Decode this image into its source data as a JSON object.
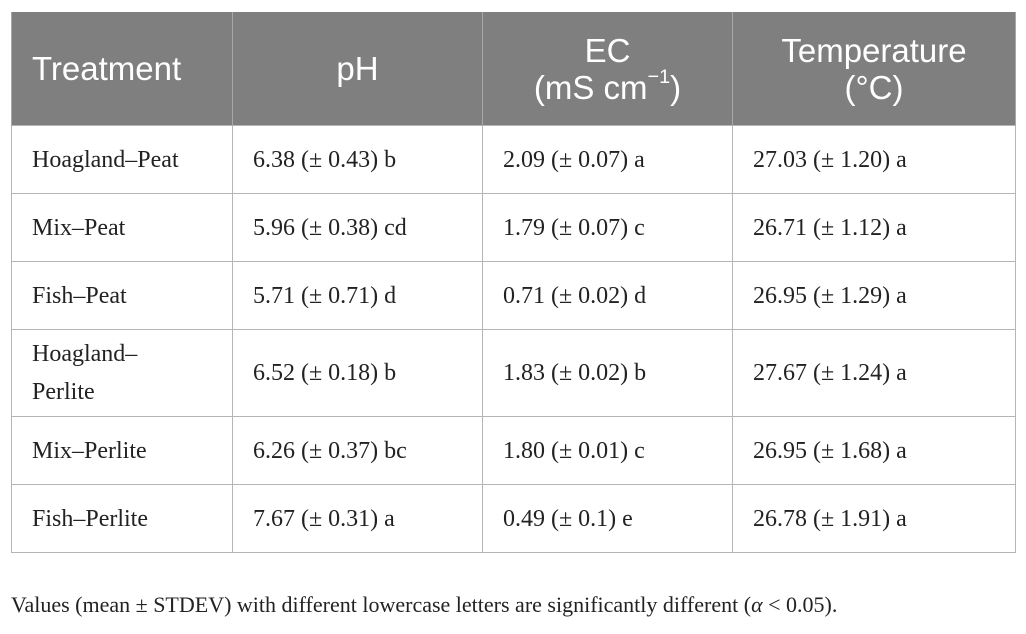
{
  "table": {
    "headers": {
      "treatment": "Treatment",
      "ph": "pH",
      "ec_line1": "EC",
      "ec_unit": "(mS cm",
      "ec_exp": "−1",
      "ec_close": ")",
      "temp_line1": "Temperature",
      "temp_line2": "(°C)"
    },
    "rows": [
      {
        "treatment": "Hoagland–Peat",
        "ph": "6.38 (± 0.43) b",
        "ec": "2.09 (± 0.07) a",
        "temperature": "27.03 (± 1.20) a"
      },
      {
        "treatment": "Mix–Peat",
        "ph": "5.96 (± 0.38) cd",
        "ec": "1.79 (± 0.07) c",
        "temperature": "26.71 (± 1.12) a"
      },
      {
        "treatment": "Fish–Peat",
        "ph": "5.71 (± 0.71) d",
        "ec": "0.71 (± 0.02) d",
        "temperature": "26.95 (± 1.29) a"
      },
      {
        "treatment_line1": "Hoagland–",
        "treatment_line2": "Perlite",
        "ph": "6.52 (± 0.18) b",
        "ec": "1.83 (± 0.02) b",
        "temperature": "27.67 (± 1.24) a"
      },
      {
        "treatment": "Mix–Perlite",
        "ph": "6.26 (± 0.37) bc",
        "ec": "1.80 (± 0.01) c",
        "temperature": "26.95 (± 1.68) a"
      },
      {
        "treatment": "Fish–Perlite",
        "ph": "7.67 (± 0.31) a",
        "ec": "0.49 (± 0.1) e",
        "temperature": "26.78 (± 1.91) a"
      }
    ]
  },
  "footnote": {
    "prefix": "Values (mean ± STDEV) with different lowercase letters are significantly different (",
    "alpha": "α",
    "suffix": " < 0.05)."
  },
  "colors": {
    "header_background": "#7f7f7f",
    "header_text": "#ffffff",
    "cell_border": "#b5b5b5",
    "body_text": "#222222"
  }
}
